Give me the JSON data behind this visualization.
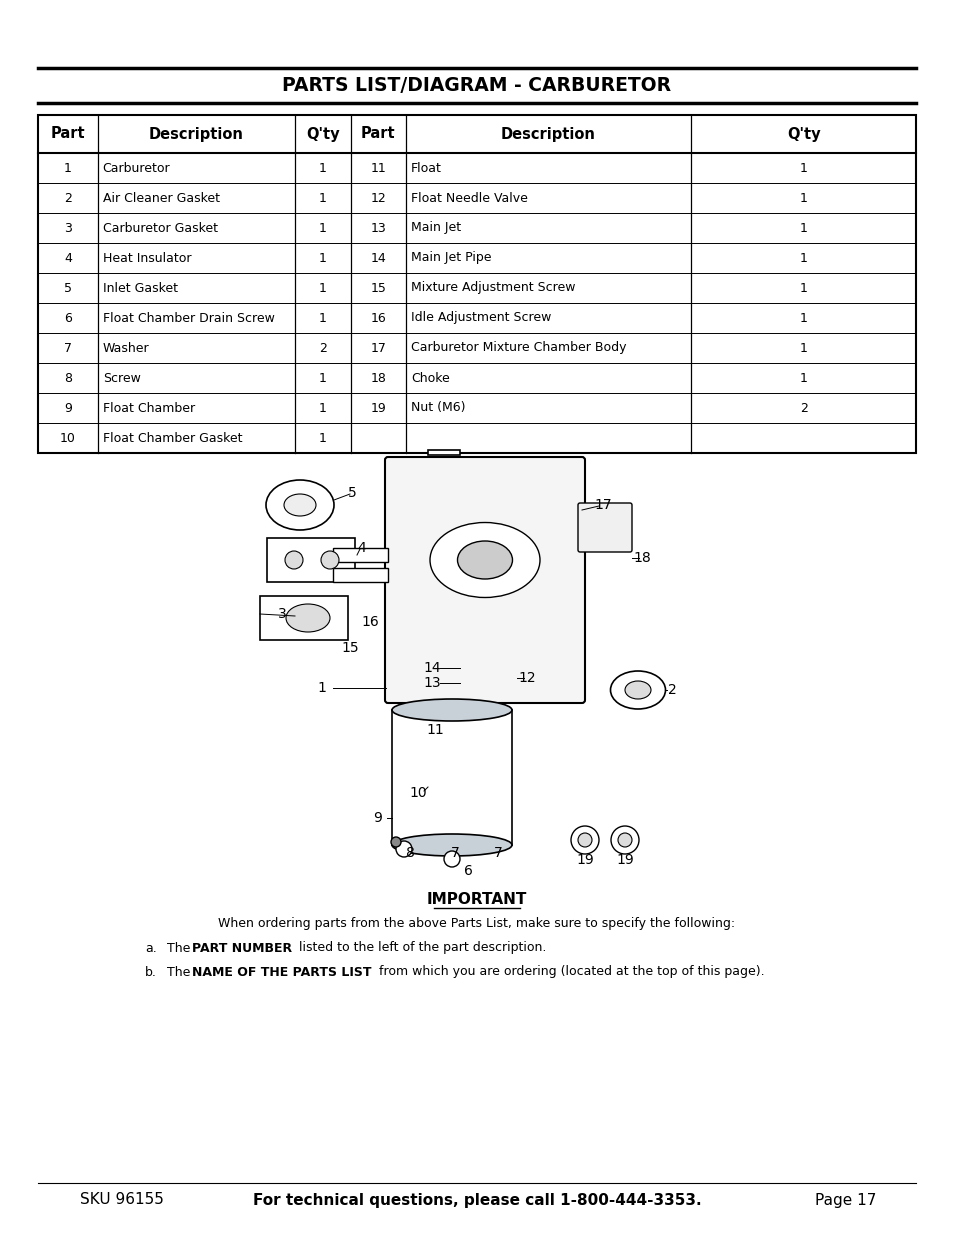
{
  "title": "PARTS LIST/DIAGRAM - CARBURETOR",
  "table_headers": [
    "Part",
    "Description",
    "Q'ty",
    "Part",
    "Description",
    "Q'ty"
  ],
  "table_rows": [
    [
      "1",
      "Carburetor",
      "1",
      "11",
      "Float",
      "1"
    ],
    [
      "2",
      "Air Cleaner Gasket",
      "1",
      "12",
      "Float Needle Valve",
      "1"
    ],
    [
      "3",
      "Carburetor Gasket",
      "1",
      "13",
      "Main Jet",
      "1"
    ],
    [
      "4",
      "Heat Insulator",
      "1",
      "14",
      "Main Jet Pipe",
      "1"
    ],
    [
      "5",
      "Inlet Gasket",
      "1",
      "15",
      "Mixture Adjustment Screw",
      "1"
    ],
    [
      "6",
      "Float Chamber Drain Screw",
      "1",
      "16",
      "Idle Adjustment Screw",
      "1"
    ],
    [
      "7",
      "Washer",
      "2",
      "17",
      "Carburetor Mixture Chamber Body",
      "1"
    ],
    [
      "8",
      "Screw",
      "1",
      "18",
      "Choke",
      "1"
    ],
    [
      "9",
      "Float Chamber",
      "1",
      "19",
      "Nut (M6)",
      "2"
    ],
    [
      "10",
      "Float Chamber Gasket",
      "1",
      "",
      "",
      ""
    ]
  ],
  "important_title": "IMPORTANT",
  "important_text": "When ordering parts from the above Parts List, make sure to specify the following:",
  "item_a_label": "a.",
  "item_a_pre": "The ",
  "item_a_bold": "PART NUMBER",
  "item_a_post": " listed to the left of the part description.",
  "item_b_label": "b.",
  "item_b_pre": "The ",
  "item_b_bold": "NAME OF THE PARTS LIST",
  "item_b_post": " from which you are ordering (located at the top of this page).",
  "footer_sku": "SKU 96155",
  "footer_center": "For technical questions, please call 1-800-444-3353.",
  "footer_page": "Page 17",
  "bg_color": "#ffffff"
}
